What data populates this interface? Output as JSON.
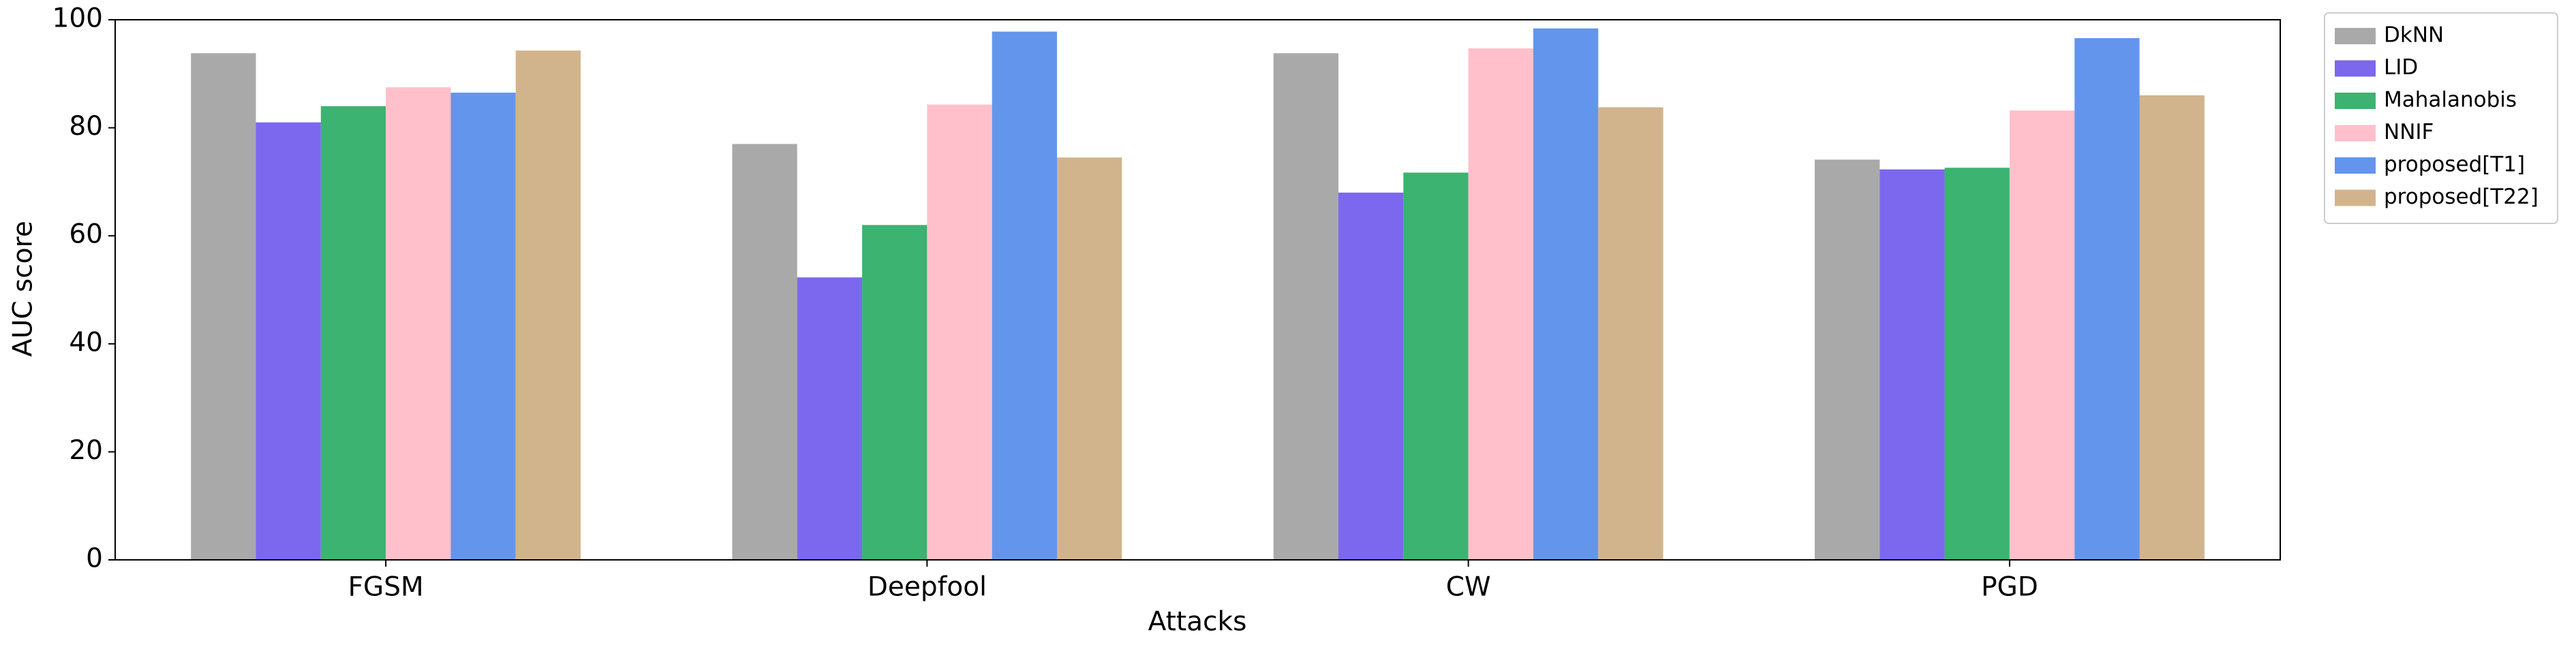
{
  "chart_data": {
    "type": "bar",
    "x_label": "Attacks",
    "y_label": "AUC score",
    "categories": [
      "FGSM",
      "Deepfool",
      "CW",
      "PGD"
    ],
    "series": [
      {
        "name": "DkNN",
        "color": "#a9a9a9",
        "values": [
          93.8,
          77,
          93.8,
          74.1
        ]
      },
      {
        "name": "LID",
        "color": "#7b68ee",
        "values": [
          81,
          52.3,
          68,
          72.3
        ]
      },
      {
        "name": "Mahalanobis",
        "color": "#3cb371",
        "values": [
          84,
          62,
          71.7,
          72.6
        ]
      },
      {
        "name": "NNIF",
        "color": "#ffc0cb",
        "values": [
          87.5,
          84.3,
          94.7,
          83.2
        ]
      },
      {
        "name": "proposed[T1]",
        "color": "#6495ed",
        "values": [
          86.5,
          97.8,
          98.4,
          96.6
        ]
      },
      {
        "name": "proposed[T22]",
        "color": "#d2b48c",
        "values": [
          94.3,
          74.5,
          83.8,
          86
        ]
      }
    ],
    "ylim": [
      0,
      100
    ],
    "yticks": [
      0,
      20,
      40,
      60,
      80,
      100
    ],
    "grid": false,
    "legend": "outside upper right"
  }
}
